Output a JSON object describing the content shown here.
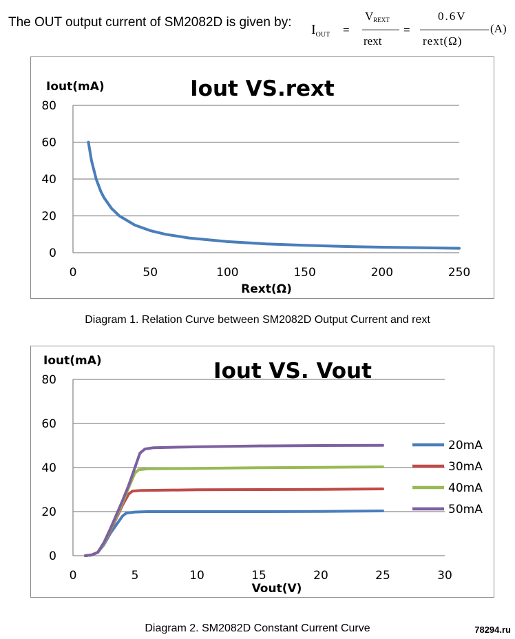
{
  "intro_text": "The OUT output current of SM2082D is given by:",
  "formula": {
    "lhs_main": "I",
    "lhs_sub": "OUT",
    "eq1": "=",
    "frac1_num_main": "V",
    "frac1_num_sub": "REXT",
    "frac1_den": "rext",
    "eq2": "=",
    "frac2_num": "0.6V",
    "frac2_den": "rext(Ω)",
    "unit": "(A)"
  },
  "captions": {
    "diagram1": "Diagram 1. Relation Curve between SM2082D Output Current and rext",
    "diagram2": "Diagram 2. SM2082D Constant Current Curve"
  },
  "watermark": "78294.ru",
  "chart_data": [
    {
      "type": "line",
      "title": "Iout VS.rext",
      "ylabel": "Iout(mA)",
      "xlabel": "Rext(Ω)",
      "xlim": [
        0,
        250
      ],
      "ylim": [
        0,
        80
      ],
      "xticks": [
        0,
        50,
        100,
        150,
        200,
        250
      ],
      "yticks": [
        0,
        20,
        40,
        60,
        80
      ],
      "grid": "horizontal",
      "legend": "none",
      "series": [
        {
          "color": "#4a7ebb",
          "x": [
            10,
            12,
            15,
            18,
            20,
            25,
            30,
            40,
            50,
            60,
            75,
            100,
            125,
            150,
            175,
            200,
            225,
            250
          ],
          "y": [
            60,
            50,
            40,
            33.3,
            30,
            24,
            20,
            15,
            12,
            10,
            8,
            6,
            4.8,
            4,
            3.4,
            3,
            2.7,
            2.4
          ]
        }
      ]
    },
    {
      "type": "line",
      "title": "Iout VS. Vout",
      "ylabel": "Iout(mA)",
      "xlabel": "Vout(V)",
      "xlim": [
        0,
        30
      ],
      "ylim": [
        0,
        80
      ],
      "xticks": [
        0,
        5,
        10,
        15,
        20,
        25,
        30
      ],
      "yticks": [
        0,
        20,
        40,
        60,
        80
      ],
      "grid": "horizontal",
      "legend": "right",
      "series": [
        {
          "name": "20mA",
          "color": "#4a7ebb",
          "x": [
            1,
            1.5,
            2,
            2.5,
            3,
            3.5,
            4,
            4.3,
            5,
            6,
            10,
            15,
            20,
            25
          ],
          "y": [
            0,
            0.3,
            1.5,
            5,
            10,
            14,
            18,
            19.3,
            19.8,
            20,
            20,
            20,
            20.1,
            20.3
          ]
        },
        {
          "name": "30mA",
          "color": "#be4b48",
          "x": [
            1,
            1.5,
            2,
            2.5,
            3,
            3.5,
            4,
            4.5,
            4.8,
            5.5,
            10,
            15,
            20,
            25
          ],
          "y": [
            0,
            0.3,
            1.5,
            5.5,
            11,
            17,
            23,
            28,
            29.3,
            29.6,
            29.9,
            30,
            30.1,
            30.3
          ]
        },
        {
          "name": "40mA",
          "color": "#98b954",
          "x": [
            1,
            1.5,
            2,
            2.5,
            3,
            3.5,
            4,
            4.5,
            5,
            5.3,
            6,
            10,
            15,
            20,
            25
          ],
          "y": [
            0,
            0.3,
            1.5,
            5.5,
            11.5,
            17.5,
            24,
            31,
            37.5,
            39,
            39.4,
            39.6,
            39.9,
            40.1,
            40.3
          ]
        },
        {
          "name": "50mA",
          "color": "#7d60a0",
          "x": [
            1,
            1.5,
            2,
            2.5,
            3,
            3.5,
            4,
            4.5,
            5,
            5.4,
            5.8,
            6.5,
            10,
            15,
            20,
            25
          ],
          "y": [
            0,
            0.3,
            1.5,
            6,
            12,
            18.5,
            25,
            32,
            40,
            46.5,
            48.4,
            49,
            49.4,
            49.8,
            50,
            50.1
          ]
        }
      ]
    }
  ]
}
